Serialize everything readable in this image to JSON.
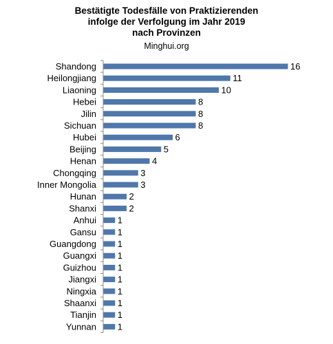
{
  "chart_data": {
    "type": "bar",
    "orientation": "horizontal",
    "title_lines": [
      "Bestätigte Todesfälle von Praktizierenden",
      "infolge der Verfolgung im Jahr 2019",
      "nach Provinzen"
    ],
    "source": "Minghui.org",
    "categories": [
      "Shandong",
      "Heilongjiang",
      "Liaoning",
      "Hebei",
      "Jilin",
      "Sichuan",
      "Hubei",
      "Beijing",
      "Henan",
      "Chongqing",
      "Inner Mongolia",
      "Hunan",
      "Shanxi",
      "Anhui",
      "Gansu",
      "Guangdong",
      "Guangxi",
      "Guizhou",
      "Jiangxi",
      "Ningxia",
      "Shaanxi",
      "Tianjin",
      "Yunnan"
    ],
    "values": [
      16,
      11,
      10,
      8,
      8,
      8,
      6,
      5,
      4,
      3,
      3,
      2,
      2,
      1,
      1,
      1,
      1,
      1,
      1,
      1,
      1,
      1,
      1
    ],
    "data_labels": true,
    "bar_color": "#4f77aa",
    "xlim": [
      0,
      16
    ],
    "legend": "none",
    "grid": false
  }
}
